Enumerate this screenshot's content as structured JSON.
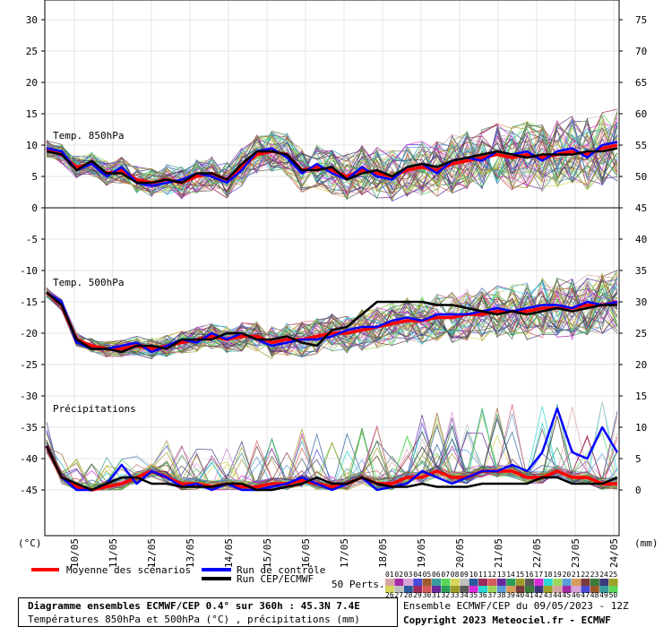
{
  "chart_data": {
    "type": "line",
    "dates": [
      "10/05",
      "11/05",
      "12/05",
      "13/05",
      "14/05",
      "15/05",
      "16/05",
      "17/05",
      "18/05",
      "19/05",
      "20/05",
      "21/05",
      "22/05",
      "23/05",
      "24/05"
    ],
    "left_axis": {
      "unit": "(°C)",
      "ticks": [
        30,
        25,
        20,
        15,
        10,
        5,
        0,
        -5,
        -10,
        -15,
        -20,
        -25,
        -30,
        -35,
        -40,
        -45
      ]
    },
    "right_axis": {
      "unit": "(mm)",
      "ticks": [
        75,
        70,
        65,
        60,
        55,
        50,
        45,
        40,
        35,
        30,
        25,
        20,
        15,
        10,
        5,
        0
      ]
    },
    "panels": {
      "t850": {
        "title": "Temp. 850hPa",
        "ylim": [
          0,
          33
        ]
      },
      "t500": {
        "title": "Temp. 500hPa",
        "ylim": [
          -28,
          -5
        ]
      },
      "precip": {
        "title": "Précipitations",
        "ylim": [
          0,
          18
        ]
      }
    },
    "series": [
      {
        "name": "Moyenne des scénarios",
        "color": "#ff0000",
        "t850": [
          9.5,
          8.5,
          6.5,
          7.0,
          5.5,
          6.0,
          4.5,
          4.0,
          4.5,
          4.0,
          5.0,
          5.5,
          4.5,
          6.5,
          8.5,
          9.0,
          8.5,
          6.0,
          6.5,
          6.0,
          5.0,
          6.0,
          5.5,
          5.0,
          6.0,
          6.5,
          6.0,
          7.0,
          7.5,
          8.0,
          8.5,
          8.0,
          8.5,
          8.0,
          8.5,
          9.0,
          8.5,
          9.5,
          10.0
        ],
        "t500": [
          -13.5,
          -15.5,
          -21,
          -22,
          -22.5,
          -22.5,
          -22,
          -22.5,
          -22,
          -21.5,
          -21,
          -20.5,
          -21,
          -20.5,
          -20.5,
          -21.5,
          -21,
          -21,
          -20.5,
          -20,
          -20,
          -19.5,
          -19,
          -18.5,
          -18,
          -18,
          -17.5,
          -17.5,
          -17,
          -17,
          -16.5,
          -16.5,
          -16.5,
          -16,
          -16,
          -16,
          -15.5,
          -15.5,
          -15
        ],
        "precip": [
          7,
          2,
          0.5,
          0,
          0.5,
          1,
          2,
          3,
          2,
          1,
          1,
          0.5,
          1,
          0.5,
          0.5,
          1,
          1,
          1.5,
          1,
          0.5,
          1,
          2,
          1,
          1,
          2,
          2,
          3,
          2,
          2,
          3,
          3,
          3,
          2,
          2,
          3,
          2,
          2,
          1,
          1
        ]
      },
      {
        "name": "Run de contrôle",
        "color": "#0000ff",
        "t850": [
          9.5,
          9.0,
          6.0,
          7.0,
          5.0,
          6.5,
          4.0,
          3.5,
          4.0,
          4.5,
          5.5,
          5.0,
          4.0,
          6.0,
          9.0,
          9.5,
          8.0,
          5.5,
          7.0,
          5.5,
          4.5,
          6.5,
          5.0,
          4.5,
          6.5,
          7.0,
          5.5,
          7.5,
          8.0,
          7.5,
          9.0,
          8.5,
          9.0,
          7.5,
          9.0,
          9.5,
          8.0,
          10.0,
          10.5
        ],
        "t500": [
          -13.5,
          -15,
          -21.5,
          -22.5,
          -22.5,
          -22,
          -21.5,
          -23,
          -22,
          -21,
          -21.5,
          -20,
          -21,
          -20,
          -21,
          -22,
          -21.5,
          -21,
          -21,
          -20.5,
          -19.5,
          -19,
          -19,
          -18,
          -17.5,
          -18,
          -17,
          -17,
          -17,
          -16.5,
          -16,
          -16.5,
          -16,
          -15.5,
          -15.5,
          -16,
          -15,
          -15.5,
          -15
        ],
        "precip": [
          7,
          2,
          0,
          0,
          1,
          4,
          1,
          3,
          2,
          0.5,
          1,
          0,
          1,
          0,
          0,
          0.5,
          1,
          2,
          1,
          0,
          1,
          2,
          0,
          0.5,
          1,
          3,
          2,
          1,
          2,
          3,
          3,
          4,
          3,
          6,
          13,
          6,
          5,
          10,
          6
        ]
      },
      {
        "name": "Run CEP/ECMWF",
        "color": "#000000",
        "t850": [
          9.0,
          8.5,
          6.0,
          7.5,
          5.5,
          5.5,
          4.0,
          4.0,
          4.5,
          4.0,
          5.5,
          5.5,
          4.5,
          7.0,
          9.0,
          9.0,
          8.5,
          6.0,
          6.0,
          6.5,
          4.5,
          5.5,
          6.0,
          5.0,
          6.5,
          7.0,
          6.5,
          7.5,
          8.0,
          8.5,
          9.0,
          8.5,
          8.0,
          8.5,
          8.5,
          8.5,
          9.0,
          9.0,
          9.5
        ],
        "t500": [
          -13.5,
          -15.5,
          -21,
          -22.5,
          -22.5,
          -23,
          -22,
          -22,
          -22.5,
          -21,
          -21,
          -21,
          -20,
          -20,
          -21,
          -21,
          -20.5,
          -21.5,
          -22,
          -19.5,
          -19,
          -17,
          -15,
          -15,
          -15,
          -15,
          -15.5,
          -15.5,
          -16,
          -16.5,
          -17,
          -16.5,
          -17,
          -16.5,
          -16,
          -16.5,
          -16,
          -15.5,
          -15.5
        ],
        "precip": [
          7,
          2,
          1,
          0,
          1,
          2,
          2,
          1,
          1,
          0.5,
          0.5,
          0.5,
          1,
          1,
          0,
          0,
          0.5,
          1,
          2,
          1,
          1,
          2,
          1,
          0.5,
          0.5,
          1,
          0.5,
          0.5,
          0.5,
          1,
          1,
          1,
          1,
          2,
          2,
          1,
          1,
          1,
          2
        ]
      }
    ],
    "legend": {
      "mean": "Moyenne des scénarios",
      "control": "Run de contrôle",
      "oper": "Run CEP/ECMWF"
    }
  },
  "perts": {
    "label": "50 Perts.",
    "row1": [
      "01",
      "02",
      "03",
      "04",
      "05",
      "06",
      "07",
      "08",
      "09",
      "10",
      "11",
      "12",
      "13",
      "14",
      "15",
      "16",
      "17",
      "18",
      "19",
      "20",
      "21",
      "22",
      "23",
      "24",
      "25"
    ],
    "row2": [
      "26",
      "27",
      "28",
      "29",
      "30",
      "31",
      "32",
      "33",
      "34",
      "35",
      "36",
      "37",
      "38",
      "39",
      "40",
      "41",
      "42",
      "43",
      "44",
      "45",
      "46",
      "47",
      "48",
      "49",
      "50"
    ],
    "colors": [
      "#d6a3a3",
      "#a52aa5",
      "#d6a3d6",
      "#4a4ad6",
      "#9c5a2a",
      "#3a9c9c",
      "#5ad65a",
      "#d6d65a",
      "#c0c0c0",
      "#2a5a9c",
      "#9c2a5a",
      "#d65a5a",
      "#6a2a9c",
      "#2a9c5a",
      "#9c9c2a",
      "#5a5a5a",
      "#d62ad6",
      "#2ad6d6",
      "#9cd65a",
      "#5a9cd6",
      "#d69c5a",
      "#7a3a3a",
      "#3a7a3a",
      "#3a3a7a",
      "#a0a02a"
    ]
  },
  "footer": {
    "title": "Diagramme ensembles ECMWF/CEP 0.4° sur 360h : 45.3N 7.4E",
    "subtitle": "Températures 850hPa et 500hPa (°C) , précipitations (mm)",
    "run": "Ensemble ECMWF/CEP du 09/05/2023 - 12Z",
    "copyright": "Copyright 2023 Meteociel.fr - ECMWF"
  }
}
